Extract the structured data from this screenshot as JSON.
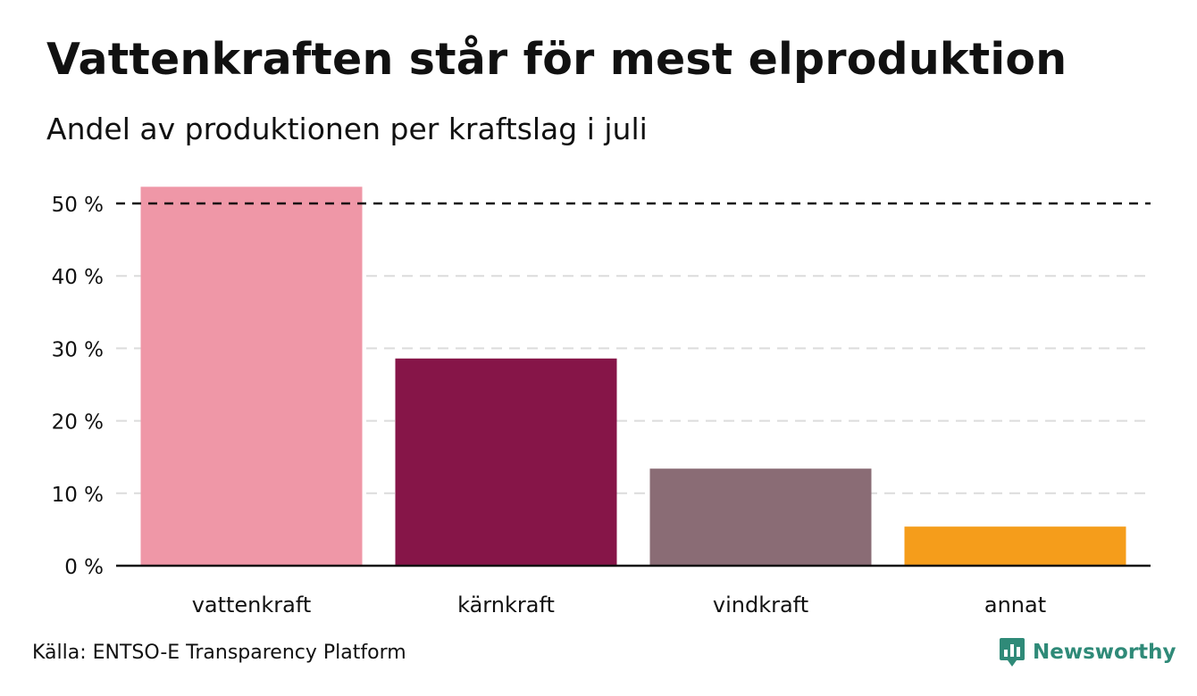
{
  "title": "Vattenkraften står för mest elproduktion",
  "subtitle": "Andel av produktionen per kraftslag i juli",
  "source": "Källa: ENTSO-E Transparency Platform",
  "brand": {
    "name": "Newsworthy",
    "icon": "newsworthy-logo-icon",
    "color": "#2f8a78"
  },
  "chart_data": {
    "type": "bar",
    "title": "Vattenkraften står för mest elproduktion",
    "subtitle": "Andel av produktionen per kraftslag i juli",
    "categories": [
      "vattenkraft",
      "kärnkraft",
      "vindkraft",
      "annat"
    ],
    "values": [
      52.3,
      28.6,
      13.4,
      5.4
    ],
    "colors": [
      "#ef97a7",
      "#861548",
      "#8a6c75",
      "#f59d1b"
    ],
    "ylim": [
      0,
      50
    ],
    "yticks": [
      0,
      10,
      20,
      30,
      40,
      50
    ],
    "ytick_labels": [
      "0 %",
      "10 %",
      "20 %",
      "30 %",
      "40 %",
      "50 %"
    ],
    "reference_line": 50,
    "grid": true,
    "grid_style": "dashed",
    "xlabel": "",
    "ylabel": ""
  }
}
